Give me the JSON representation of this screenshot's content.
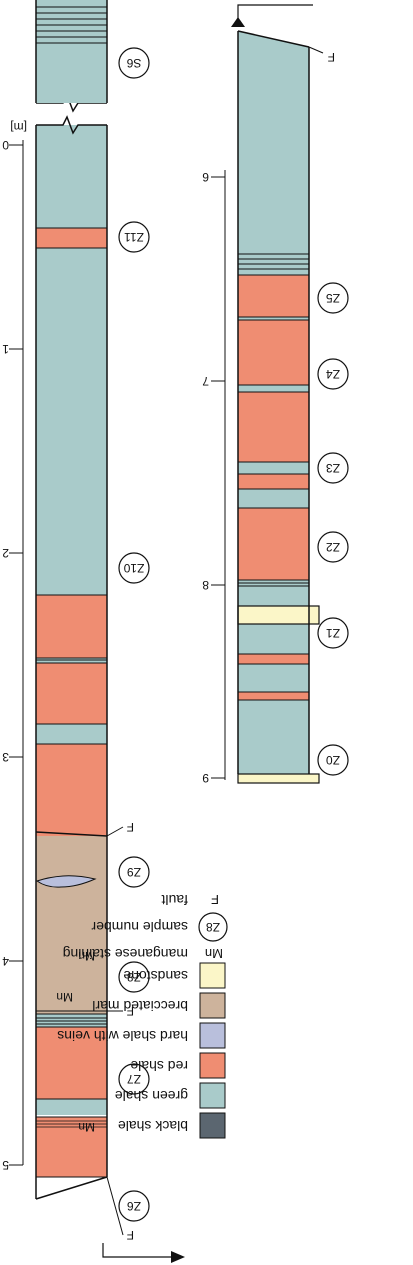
{
  "unit_label": "[m]",
  "colors": {
    "black_shale": "#5b6670",
    "green_shale": "#a9cbca",
    "red_shale": "#ef8d72",
    "hard_shale_with_veins": "#b9bfdc",
    "brecciated_marl": "#cdb39c",
    "sandstone": "#fbf6c8",
    "outline": "#111111"
  },
  "axis_ticks": {
    "left": [
      "0",
      "1",
      "2",
      "3",
      "4",
      "5"
    ],
    "right": [
      "6",
      "7",
      "8",
      "9"
    ]
  },
  "samples": {
    "left": [
      "S6",
      "Z11",
      "Z10",
      "Z9",
      "Z8",
      "Z7",
      "Z6"
    ],
    "right": [
      "Z5",
      "Z4",
      "Z3",
      "Z2",
      "Z1",
      "Z0"
    ]
  },
  "annotations": {
    "fault_marks": [
      "F",
      "F",
      "F",
      "F"
    ],
    "mn_marks": [
      "Mn",
      "Mn",
      "Mn"
    ]
  },
  "legend": [
    {
      "key": "black_shale",
      "label": "black shale"
    },
    {
      "key": "green_shale",
      "label": "green shale"
    },
    {
      "key": "red_shale",
      "label": "red shale"
    },
    {
      "key": "hard_shale_with_veins",
      "label": "hard shale with veins"
    },
    {
      "key": "brecciated_marl",
      "label": "brecciated marl"
    },
    {
      "key": "sandstone",
      "label": "sandstone"
    },
    {
      "key": "manganese_staining",
      "symbol": "Mn",
      "label": "manganese staining"
    },
    {
      "key": "sample_number",
      "symbol": "Z8",
      "label": "sample number"
    },
    {
      "key": "fault",
      "symbol": "F",
      "label": "fault"
    }
  ]
}
